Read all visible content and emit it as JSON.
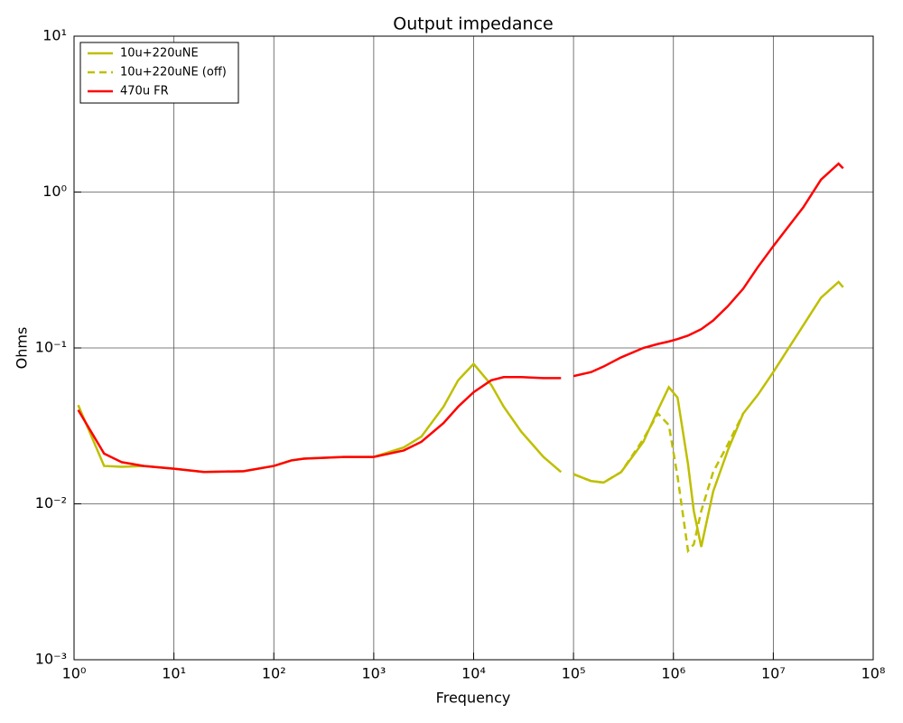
{
  "chart_data": {
    "type": "line",
    "title": "Output impedance",
    "x_label": "Frequency",
    "y_label": "Ohms",
    "x_scale": "log",
    "y_scale": "log",
    "grid": true,
    "legend_position": "upper-left",
    "x": [
      1.1,
      2,
      3,
      5,
      10,
      20,
      50,
      100,
      150,
      200,
      500,
      1000,
      2000,
      3000,
      5000,
      7000,
      10000,
      15000,
      20000,
      30000,
      50000,
      75000,
      87000,
      100000,
      150000,
      200000,
      300000,
      500000,
      700000,
      900000,
      1100000,
      1400000,
      1600000,
      1900000,
      2500000,
      3500000,
      5000000,
      7000000,
      10000000,
      20000000,
      30000000,
      45000000,
      50000000
    ],
    "series": [
      {
        "name": "10u+220uNE",
        "color": "#bfbf00",
        "linestyle": "solid",
        "values": [
          0.043,
          0.0175,
          0.0173,
          0.0175,
          0.0168,
          0.016,
          0.0162,
          0.0175,
          0.019,
          0.0195,
          0.02,
          0.02,
          0.023,
          0.027,
          0.042,
          0.062,
          0.079,
          0.058,
          0.042,
          0.029,
          0.02,
          0.016,
          null,
          0.0155,
          0.014,
          0.0137,
          0.016,
          0.025,
          0.04,
          0.056,
          0.048,
          0.018,
          0.009,
          0.0053,
          0.012,
          0.022,
          0.038,
          0.05,
          0.07,
          0.14,
          0.21,
          0.265,
          0.245
        ]
      },
      {
        "name": "10u+220uNE (off)",
        "color": "#bfbf00",
        "linestyle": "dashed",
        "values": [
          null,
          null,
          null,
          null,
          null,
          null,
          null,
          null,
          null,
          null,
          null,
          null,
          null,
          null,
          null,
          null,
          null,
          null,
          null,
          null,
          null,
          null,
          null,
          0.0155,
          0.014,
          0.0137,
          0.016,
          0.026,
          0.038,
          0.032,
          0.015,
          0.005,
          0.0055,
          0.009,
          0.016,
          0.024,
          0.038,
          null,
          null,
          null,
          null,
          null,
          null
        ]
      },
      {
        "name": "470u FR",
        "color": "#ff0000",
        "linestyle": "solid",
        "values": [
          0.04,
          0.021,
          0.0185,
          0.0175,
          0.0168,
          0.016,
          0.0162,
          0.0175,
          0.019,
          0.0195,
          0.02,
          0.02,
          0.022,
          0.025,
          0.033,
          0.042,
          0.052,
          0.062,
          0.065,
          0.065,
          0.064,
          0.064,
          null,
          0.066,
          0.07,
          0.076,
          0.087,
          0.1,
          0.106,
          0.11,
          0.114,
          0.12,
          0.125,
          0.132,
          0.15,
          0.185,
          0.24,
          0.33,
          0.45,
          0.8,
          1.2,
          1.52,
          1.42
        ]
      }
    ],
    "xlim": [
      1,
      100000000
    ],
    "ylim": [
      0.001,
      10
    ],
    "xticks": [
      {
        "value": 1,
        "label": "10⁰"
      },
      {
        "value": 10,
        "label": "10¹"
      },
      {
        "value": 100,
        "label": "10²"
      },
      {
        "value": 1000,
        "label": "10³"
      },
      {
        "value": 10000,
        "label": "10⁴"
      },
      {
        "value": 100000,
        "label": "10⁵"
      },
      {
        "value": 1000000,
        "label": "10⁶"
      },
      {
        "value": 10000000,
        "label": "10⁷"
      },
      {
        "value": 100000000,
        "label": "10⁸"
      }
    ],
    "yticks": [
      {
        "value": 0.001,
        "label": "10⁻³"
      },
      {
        "value": 0.01,
        "label": "10⁻²"
      },
      {
        "value": 0.1,
        "label": "10⁻¹"
      },
      {
        "value": 1,
        "label": "10⁰"
      },
      {
        "value": 10,
        "label": "10¹"
      }
    ]
  }
}
